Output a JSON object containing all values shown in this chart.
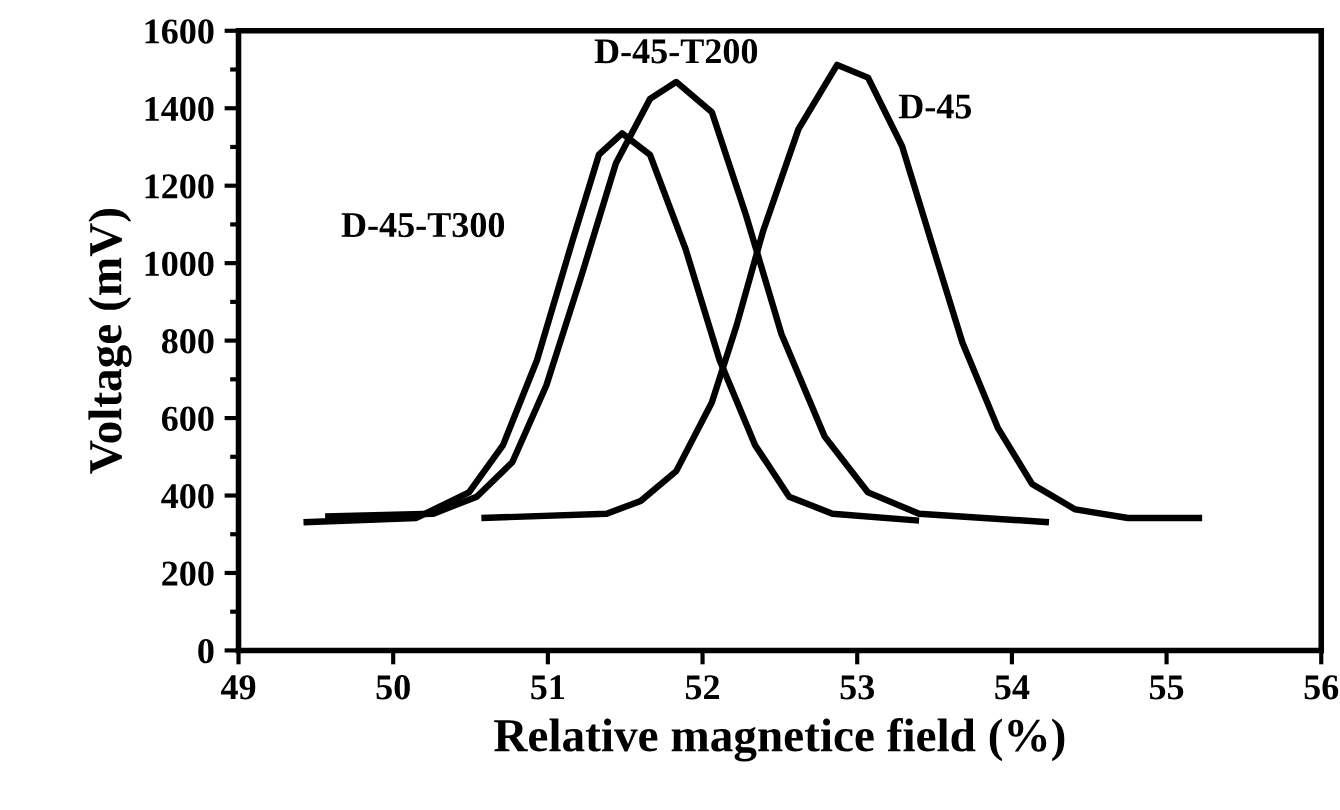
{
  "chart_data": {
    "type": "line",
    "xlabel": "Relative magnetice field (%)",
    "ylabel": "Voltage (mV)",
    "xlim": [
      49,
      56
    ],
    "xticks": [
      49,
      50,
      51,
      52,
      53,
      54,
      55,
      56
    ],
    "ylim": [
      0,
      1600
    ],
    "yticks": [
      0,
      200,
      400,
      600,
      800,
      1000,
      1200,
      1400,
      1600
    ],
    "grid": false,
    "legend": false,
    "marker": "none",
    "line_style": "solid",
    "series": [
      {
        "name": "D-45",
        "color": "#000000",
        "x": [
          50.57,
          51.38,
          51.6,
          51.83,
          52.06,
          52.22,
          52.39,
          52.62,
          52.87,
          53.07,
          53.29,
          53.51,
          53.68,
          53.91,
          54.13,
          54.41,
          54.75,
          55.23
        ],
        "values": [
          342,
          353,
          386,
          463,
          640,
          839,
          1081,
          1346,
          1512,
          1479,
          1302,
          1015,
          795,
          574,
          430,
          364,
          342,
          342
        ]
      },
      {
        "name": "D-45-T200",
        "color": "#000000",
        "x": [
          49.56,
          50.26,
          50.54,
          50.77,
          50.99,
          51.22,
          51.44,
          51.66,
          51.83,
          52.06,
          52.28,
          52.51,
          52.79,
          53.07,
          53.4,
          54.24
        ],
        "values": [
          346,
          353,
          397,
          486,
          684,
          971,
          1258,
          1424,
          1468,
          1390,
          1125,
          817,
          552,
          408,
          353,
          331
        ]
      },
      {
        "name": "D-45-T300",
        "color": "#000000",
        "x": [
          49.42,
          50.15,
          50.49,
          50.71,
          50.93,
          51.16,
          51.33,
          51.48,
          51.66,
          51.89,
          52.11,
          52.34,
          52.56,
          52.84,
          53.4
        ],
        "values": [
          331,
          342,
          408,
          530,
          750,
          1059,
          1280,
          1335,
          1280,
          1037,
          750,
          530,
          397,
          353,
          335
        ]
      }
    ]
  }
}
